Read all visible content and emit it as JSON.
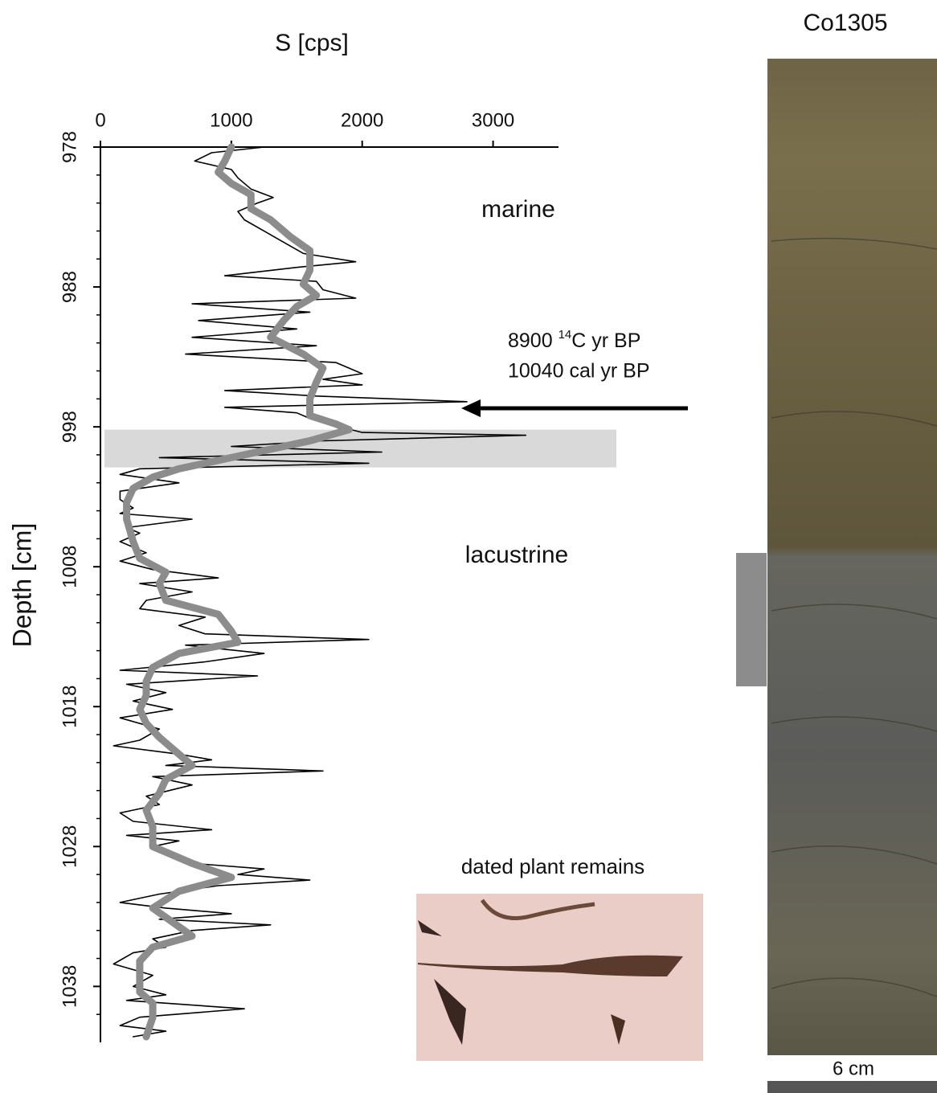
{
  "chart_data": {
    "type": "line",
    "title": "S [cps]",
    "y_label": "Depth [cm]",
    "xlim": [
      0,
      3500
    ],
    "xticks": [
      0,
      1000,
      2000,
      3000
    ],
    "ylim": [
      978,
      1042
    ],
    "y_reversed": true,
    "yticks": [
      978,
      988,
      998,
      1008,
      1018,
      1028,
      1038
    ],
    "yticks_minor": [
      980,
      982,
      984,
      986,
      990,
      992,
      994,
      996,
      1000,
      1002,
      1004,
      1006,
      1010,
      1012,
      1014,
      1016,
      1020,
      1022,
      1024,
      1026,
      1030,
      1032,
      1034,
      1036,
      1040
    ],
    "highlight": {
      "depth": [
        998.2,
        1000.9
      ],
      "color": "#d9d9d9"
    },
    "series": [
      {
        "color": "#000000",
        "width": 1.6,
        "depth": [
          978.0,
          978.4,
          979.0,
          979.6,
          980.2,
          981.0,
          981.6,
          982.0,
          982.6,
          983.2,
          984.0,
          984.8,
          985.6,
          986.2,
          986.6,
          987.2,
          987.6,
          988.2,
          988.8,
          989.2,
          989.8,
          990.4,
          991.0,
          991.6,
          992.2,
          992.8,
          993.4,
          994.2,
          994.6,
          995.0,
          995.4,
          995.8,
          996.2,
          996.6,
          997.0,
          997.4,
          997.8,
          998.4,
          998.6,
          999.0,
          999.4,
          999.8,
          1000.2,
          1000.6,
          1001.0,
          1001.4,
          1002.0,
          1002.6,
          1003.2,
          1003.8,
          1004.2,
          1004.6,
          1005.2,
          1005.6,
          1006.2,
          1007.0,
          1007.6,
          1008.2,
          1008.8,
          1009.2,
          1009.8,
          1010.4,
          1011.0,
          1011.6,
          1012.2,
          1012.8,
          1013.2,
          1013.6,
          1014.2,
          1014.8,
          1015.4,
          1015.8,
          1016.4,
          1017.0,
          1017.6,
          1018.2,
          1018.8,
          1019.6,
          1020.4,
          1020.8,
          1021.4,
          1021.8,
          1022.2,
          1022.6,
          1023.0,
          1023.6,
          1024.4,
          1025.0,
          1025.6,
          1026.2,
          1026.8,
          1027.2,
          1027.6,
          1028.0,
          1029.2,
          1029.6,
          1030.0,
          1030.4,
          1030.8,
          1031.4,
          1032.0,
          1032.4,
          1032.8,
          1033.2,
          1033.6,
          1034.0,
          1034.6,
          1035.2,
          1035.6,
          1036.4,
          1037.2,
          1038.0,
          1038.6,
          1039.0,
          1039.6,
          1040.2,
          1040.8,
          1041.2,
          1041.6
        ],
        "values": [
          1250,
          850,
          720,
          1000,
          1050,
          1150,
          1320,
          1200,
          1050,
          1100,
          1250,
          1400,
          1550,
          1950,
          1500,
          950,
          1650,
          1700,
          1950,
          700,
          1600,
          750,
          1500,
          700,
          1650,
          650,
          1800,
          2000,
          1700,
          2000,
          950,
          1650,
          2800,
          950,
          1500,
          1600,
          1750,
          2000,
          3250,
          1700,
          1000,
          2150,
          450,
          2050,
          300,
          150,
          600,
          150,
          150,
          250,
          150,
          700,
          200,
          300,
          150,
          350,
          150,
          400,
          900,
          300,
          700,
          350,
          300,
          800,
          600,
          800,
          2050,
          650,
          1250,
          800,
          150,
          1200,
          200,
          500,
          250,
          550,
          150,
          450,
          300,
          100,
          600,
          850,
          500,
          1700,
          400,
          700,
          350,
          450,
          150,
          250,
          850,
          200,
          600,
          400,
          700,
          1250,
          1050,
          1600,
          900,
          450,
          150,
          500,
          1000,
          450,
          1300,
          700,
          400,
          500,
          250,
          100,
          400,
          250,
          500,
          200,
          1100,
          300,
          150,
          500,
          250
        ]
      },
      {
        "color": "#8c8c8c",
        "width": 9,
        "depth": [
          978.0,
          979.0,
          979.8,
          980.6,
          981.4,
          982.4,
          983.2,
          984.4,
          985.4,
          986.8,
          987.8,
          988.6,
          989.4,
          990.4,
          991.6,
          992.8,
          993.8,
          994.8,
          996.0,
          997.2,
          997.8,
          998.2,
          999.0,
          1000.2,
          1001.0,
          1001.6,
          1002.4,
          1003.4,
          1004.6,
          1006.2,
          1007.4,
          1008.4,
          1009.2,
          1010.4,
          1011.4,
          1012.6,
          1013.4,
          1014.2,
          1015.2,
          1016.2,
          1017.2,
          1018.2,
          1019.2,
          1020.2,
          1021.4,
          1022.2,
          1023.2,
          1024.2,
          1025.4,
          1026.6,
          1028.0,
          1029.2,
          1030.2,
          1031.2,
          1032.4,
          1033.4,
          1034.4,
          1035.2,
          1036.2,
          1037.2,
          1038.4,
          1039.2,
          1040.2,
          1041.6
        ],
        "values": [
          1000,
          950,
          900,
          1000,
          1150,
          1150,
          1300,
          1450,
          1600,
          1600,
          1550,
          1650,
          1500,
          1400,
          1300,
          1550,
          1700,
          1650,
          1600,
          1600,
          1800,
          1900,
          1600,
          1000,
          600,
          400,
          250,
          200,
          200,
          250,
          300,
          500,
          450,
          500,
          900,
          1000,
          1050,
          600,
          400,
          350,
          350,
          300,
          350,
          450,
          600,
          700,
          500,
          450,
          350,
          400,
          400,
          700,
          1000,
          600,
          400,
          550,
          700,
          400,
          300,
          300,
          300,
          400,
          400,
          350
        ]
      }
    ],
    "annotations": [
      {
        "text": "marine"
      },
      {
        "text": "lacustrine"
      },
      {
        "parts": [
          "8900 ",
          "14",
          "C yr BP"
        ]
      },
      {
        "text": "10040 cal yr BP"
      }
    ]
  },
  "core": {
    "title": "Co1305",
    "scale_label": "6 cm"
  },
  "photo": {
    "caption": "dated plant remains"
  }
}
